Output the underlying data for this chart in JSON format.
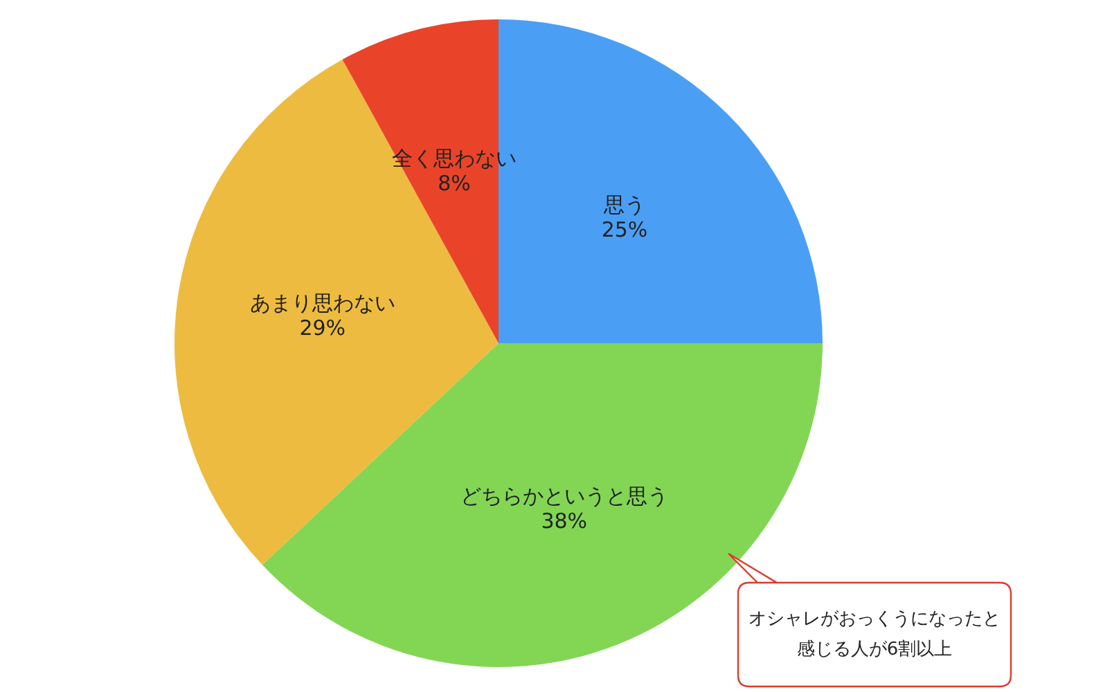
{
  "chart_data": {
    "type": "pie",
    "categories": [
      "思う",
      "どちらかというと思う",
      "あまり思わない",
      "全く思わない"
    ],
    "values": [
      25,
      38,
      29,
      8
    ],
    "value_labels": [
      "25%",
      "38%",
      "29%",
      "8%"
    ],
    "colors": [
      "#4a9ff5",
      "#82d654",
      "#edbb40",
      "#e94429"
    ],
    "annotations": [
      "オシャレがおっくうになったと感じる人が6割以上"
    ],
    "legend": false
  }
}
